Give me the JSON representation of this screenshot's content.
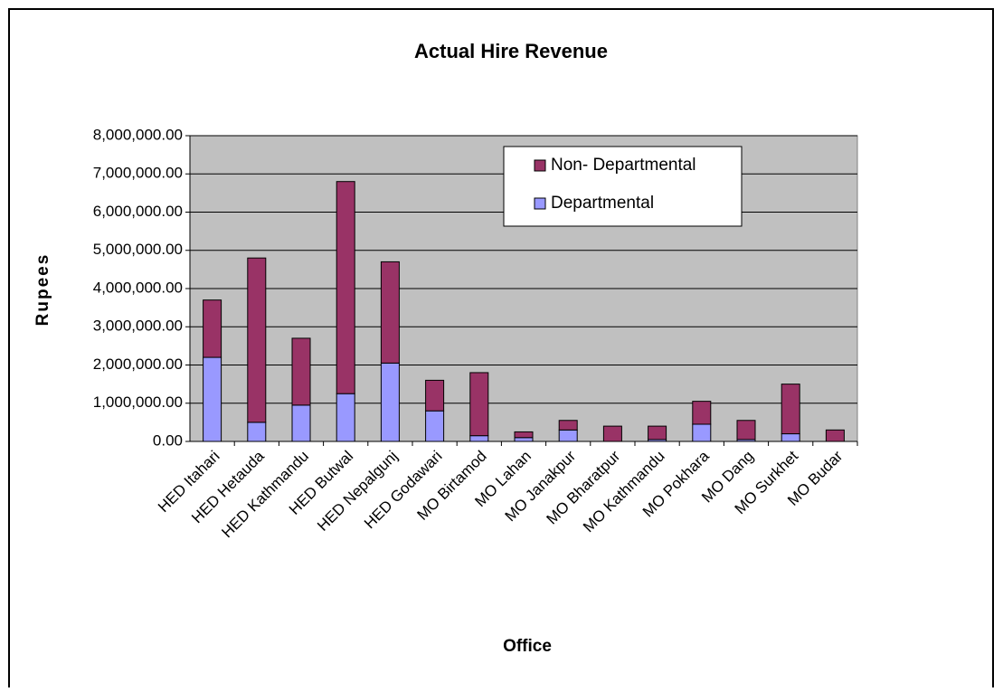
{
  "chart_data": {
    "type": "stacked_bar",
    "title": "Actual Hire Revenue",
    "x_label": "Office",
    "y_label": "Rupees",
    "categories": [
      "HED Itahari",
      "HED Hetauda",
      "HED Kathmandu",
      "HED Butwal",
      "HED Nepalgunj",
      "HED Godawari",
      "MO Birtamod",
      "MO Lahan",
      "MO Janakpur",
      "MO Bharatpur",
      "MO Kathmandu",
      "MO Pokhara",
      "MO Dang",
      "MO Surkhet",
      "MO Budar"
    ],
    "series": [
      {
        "name": "Departmental",
        "color": "#9999ff",
        "values": [
          2200000,
          500000,
          950000,
          1250000,
          2050000,
          800000,
          150000,
          100000,
          300000,
          0,
          50000,
          450000,
          50000,
          200000,
          0
        ]
      },
      {
        "name": "Non- Departmental",
        "color": "#993366",
        "values": [
          1500000,
          4300000,
          1750000,
          5550000,
          2650000,
          800000,
          1650000,
          150000,
          250000,
          400000,
          350000,
          600000,
          500000,
          1300000,
          300000
        ]
      }
    ],
    "ylim": [
      0,
      8000000
    ],
    "yticks": [
      {
        "value": 0,
        "label": "0.00"
      },
      {
        "value": 1000000,
        "label": "1,000,000.00"
      },
      {
        "value": 2000000,
        "label": "2,000,000.00"
      },
      {
        "value": 3000000,
        "label": "3,000,000.00"
      },
      {
        "value": 4000000,
        "label": "4,000,000.00"
      },
      {
        "value": 5000000,
        "label": "5,000,000.00"
      },
      {
        "value": 6000000,
        "label": "6,000,000.00"
      },
      {
        "value": 7000000,
        "label": "7,000,000.00"
      },
      {
        "value": 8000000,
        "label": "8,000,000.00"
      }
    ],
    "grid": true,
    "legend": "upper-right"
  }
}
